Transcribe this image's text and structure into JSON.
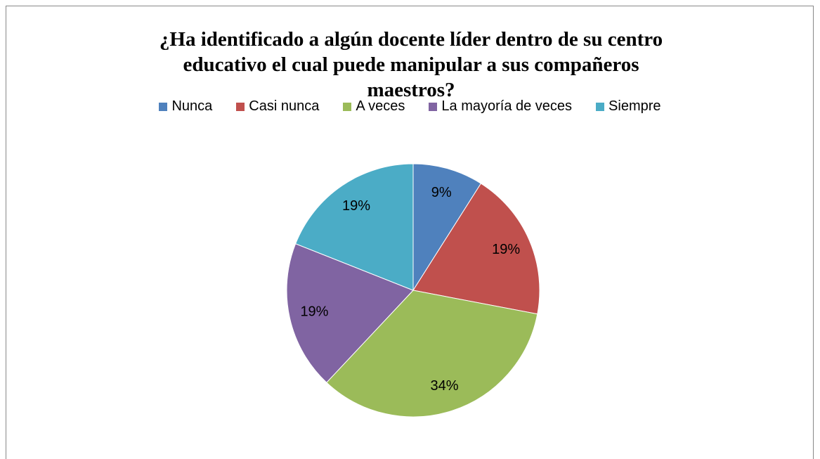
{
  "chart_data": {
    "type": "pie",
    "title": "¿Ha identificado a algún docente líder dentro de su centro educativo el cual puede manipular a sus compañeros maestros?",
    "categories": [
      "Nunca",
      "Casi nunca",
      "A veces",
      "La mayoría de veces",
      "Siempre"
    ],
    "values": [
      9,
      19,
      34,
      19,
      19
    ],
    "value_labels": [
      "9%",
      "19%",
      "34%",
      "19%",
      "19%"
    ],
    "colors": [
      "#4f81bd",
      "#c0504d",
      "#9bbb59",
      "#8064a2",
      "#4bacc6"
    ],
    "legend": "top"
  }
}
